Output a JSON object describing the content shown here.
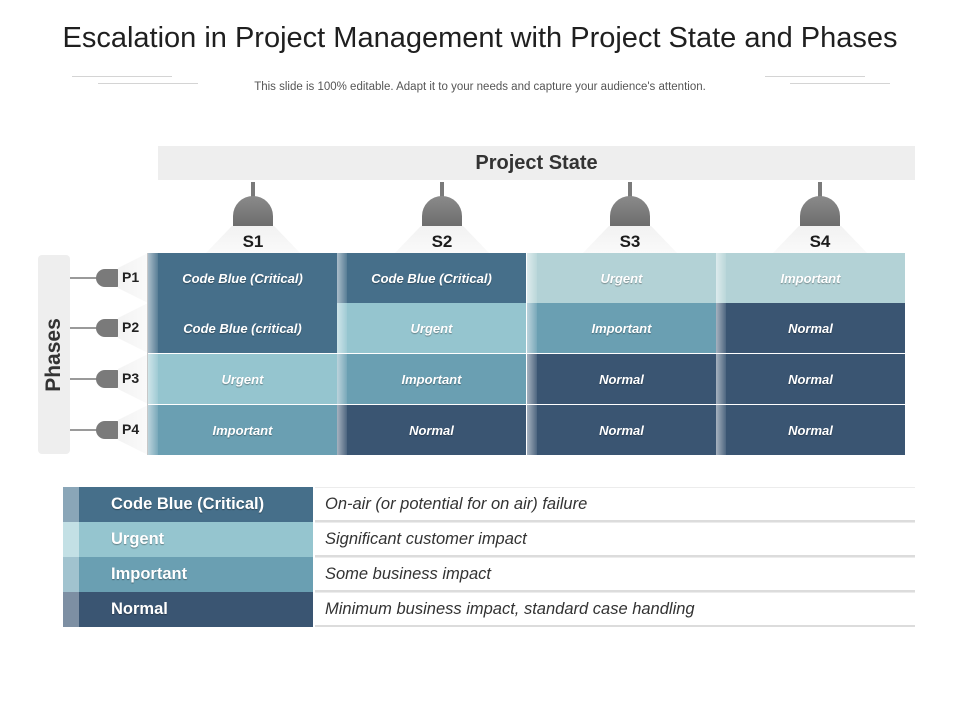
{
  "title": "Escalation in Project Management with Project State and Phases",
  "subtitle": "This slide is 100% editable. Adapt it to your needs and capture your audience's attention.",
  "project_state_label": "Project State",
  "phases_label": "Phases",
  "states": [
    "S1",
    "S2",
    "S3",
    "S4"
  ],
  "phases": [
    "P1",
    "P2",
    "P3",
    "P4"
  ],
  "colors": {
    "critical": "#466f8a",
    "urgent": "#95c5cf",
    "important": "#6a9fb2",
    "normal": "#3a5572",
    "important_p1": "#b3d2d6"
  },
  "grid": [
    [
      "Code Blue (Critical)",
      "Code Blue (Critical)",
      "Urgent",
      "Important"
    ],
    [
      "Code Blue (critical)",
      "Urgent",
      "Important",
      "Normal"
    ],
    [
      "Urgent",
      "Important",
      "Normal",
      "Normal"
    ],
    [
      "Important",
      "Normal",
      "Normal",
      "Normal"
    ]
  ],
  "legend": [
    {
      "label": "Code Blue (Critical)",
      "description": "On-air (or potential for on air) failure"
    },
    {
      "label": "Urgent",
      "description": "Significant customer impact"
    },
    {
      "label": "Important",
      "description": "Some business impact"
    },
    {
      "label": "Normal",
      "description": "Minimum business impact, standard case handling"
    }
  ]
}
